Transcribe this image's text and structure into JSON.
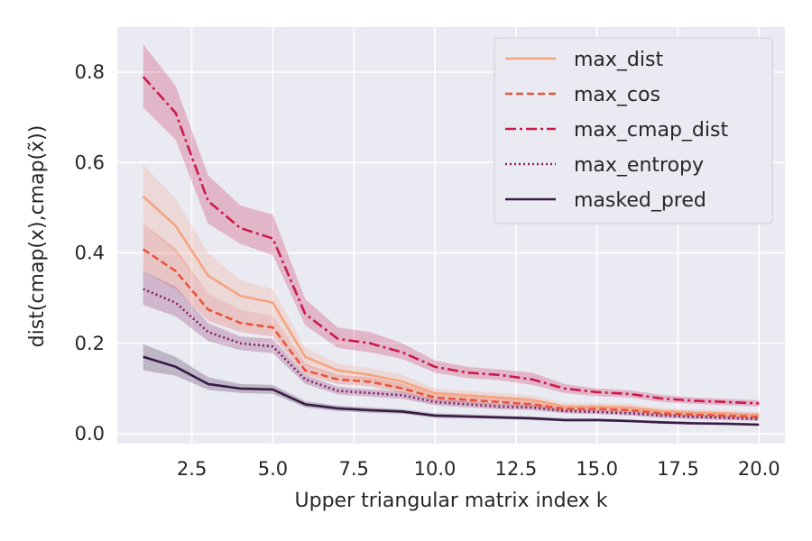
{
  "chart_data": {
    "type": "line",
    "title": "",
    "xlabel": "Upper triangular matrix index k",
    "ylabel": "dist(cmap(x),cmap(x̃))",
    "xlim": [
      0.2,
      20.8
    ],
    "ylim": [
      -0.022,
      0.9
    ],
    "xticks": [
      2.5,
      5.0,
      7.5,
      10.0,
      12.5,
      15.0,
      17.5,
      20.0
    ],
    "xtick_labels": [
      "2.5",
      "5.0",
      "7.5",
      "10.0",
      "12.5",
      "15.0",
      "17.5",
      "20.0"
    ],
    "yticks": [
      0.0,
      0.2,
      0.4,
      0.6,
      0.8
    ],
    "ytick_labels": [
      "0.0",
      "0.2",
      "0.4",
      "0.6",
      "0.8"
    ],
    "grid": true,
    "legend_position": "top-right",
    "x": [
      1,
      2,
      3,
      4,
      5,
      6,
      7,
      8,
      9,
      10,
      11,
      12,
      13,
      14,
      15,
      16,
      17,
      18,
      19,
      20
    ],
    "series": [
      {
        "name": "max_dist",
        "color": "#f4a582",
        "dash": "solid",
        "values": [
          0.525,
          0.46,
          0.35,
          0.305,
          0.29,
          0.17,
          0.14,
          0.13,
          0.115,
          0.09,
          0.085,
          0.08,
          0.075,
          0.06,
          0.06,
          0.058,
          0.05,
          0.047,
          0.045,
          0.042
        ],
        "lower": [
          0.465,
          0.4,
          0.31,
          0.275,
          0.26,
          0.15,
          0.125,
          0.115,
          0.1,
          0.08,
          0.075,
          0.07,
          0.065,
          0.053,
          0.053,
          0.05,
          0.043,
          0.04,
          0.038,
          0.036
        ],
        "upper": [
          0.595,
          0.52,
          0.4,
          0.34,
          0.32,
          0.19,
          0.155,
          0.145,
          0.13,
          0.1,
          0.095,
          0.09,
          0.085,
          0.068,
          0.068,
          0.066,
          0.057,
          0.054,
          0.052,
          0.048
        ]
      },
      {
        "name": "max_cos",
        "color": "#e8553b",
        "dash": "dashed",
        "values": [
          0.408,
          0.36,
          0.275,
          0.245,
          0.235,
          0.14,
          0.12,
          0.115,
          0.1,
          0.08,
          0.075,
          0.07,
          0.065,
          0.055,
          0.055,
          0.052,
          0.045,
          0.042,
          0.04,
          0.037
        ],
        "lower": [
          0.36,
          0.32,
          0.25,
          0.225,
          0.215,
          0.13,
          0.11,
          0.105,
          0.09,
          0.072,
          0.068,
          0.063,
          0.058,
          0.049,
          0.049,
          0.046,
          0.04,
          0.037,
          0.035,
          0.032
        ],
        "upper": [
          0.465,
          0.41,
          0.31,
          0.275,
          0.26,
          0.155,
          0.13,
          0.125,
          0.11,
          0.088,
          0.083,
          0.078,
          0.073,
          0.062,
          0.062,
          0.058,
          0.05,
          0.047,
          0.045,
          0.042
        ]
      },
      {
        "name": "max_cmap_dist",
        "color": "#cb1b4f",
        "dash": "dashdot",
        "values": [
          0.79,
          0.71,
          0.515,
          0.455,
          0.432,
          0.265,
          0.21,
          0.2,
          0.18,
          0.148,
          0.135,
          0.13,
          0.12,
          0.1,
          0.092,
          0.088,
          0.078,
          0.073,
          0.07,
          0.067
        ],
        "lower": [
          0.722,
          0.65,
          0.465,
          0.42,
          0.395,
          0.24,
          0.19,
          0.18,
          0.165,
          0.135,
          0.123,
          0.118,
          0.108,
          0.09,
          0.083,
          0.08,
          0.07,
          0.066,
          0.063,
          0.06
        ],
        "upper": [
          0.862,
          0.77,
          0.572,
          0.505,
          0.485,
          0.298,
          0.235,
          0.225,
          0.2,
          0.162,
          0.148,
          0.142,
          0.135,
          0.11,
          0.1,
          0.096,
          0.086,
          0.08,
          0.077,
          0.074
        ]
      },
      {
        "name": "max_entropy",
        "color": "#85215f",
        "dash": "dotted",
        "values": [
          0.32,
          0.29,
          0.225,
          0.2,
          0.193,
          0.12,
          0.095,
          0.09,
          0.085,
          0.07,
          0.065,
          0.06,
          0.058,
          0.05,
          0.048,
          0.045,
          0.04,
          0.037,
          0.035,
          0.032
        ],
        "lower": [
          0.285,
          0.26,
          0.205,
          0.185,
          0.178,
          0.11,
          0.087,
          0.082,
          0.077,
          0.063,
          0.058,
          0.054,
          0.052,
          0.045,
          0.043,
          0.04,
          0.035,
          0.032,
          0.03,
          0.028
        ],
        "upper": [
          0.36,
          0.325,
          0.245,
          0.215,
          0.21,
          0.13,
          0.104,
          0.098,
          0.093,
          0.077,
          0.072,
          0.066,
          0.064,
          0.055,
          0.053,
          0.05,
          0.045,
          0.042,
          0.04,
          0.036
        ]
      },
      {
        "name": "masked_pred",
        "color": "#3a1b45",
        "dash": "solid",
        "values": [
          0.17,
          0.148,
          0.11,
          0.1,
          0.098,
          0.065,
          0.056,
          0.052,
          0.049,
          0.04,
          0.038,
          0.036,
          0.034,
          0.03,
          0.03,
          0.028,
          0.025,
          0.023,
          0.022,
          0.02
        ],
        "lower": [
          0.14,
          0.128,
          0.097,
          0.09,
          0.088,
          0.058,
          0.05,
          0.046,
          0.044,
          0.035,
          0.034,
          0.032,
          0.03,
          0.027,
          0.027,
          0.025,
          0.022,
          0.02,
          0.019,
          0.017
        ],
        "upper": [
          0.198,
          0.17,
          0.125,
          0.11,
          0.108,
          0.072,
          0.062,
          0.058,
          0.054,
          0.045,
          0.043,
          0.04,
          0.038,
          0.034,
          0.034,
          0.031,
          0.028,
          0.026,
          0.025,
          0.023
        ]
      }
    ]
  }
}
